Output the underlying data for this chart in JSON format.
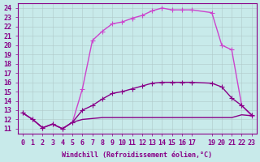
{
  "xlabel": "Windchill (Refroidissement éolien,°C)",
  "background_color": "#c8eaea",
  "grid_color": "#b0c8c8",
  "line_color1": "#880088",
  "line_color2": "#cc44cc",
  "xlim_min": -0.5,
  "xlim_max": 23.5,
  "ylim_min": 10.5,
  "ylim_max": 24.5,
  "yticks": [
    11,
    12,
    13,
    14,
    15,
    16,
    17,
    18,
    19,
    20,
    21,
    22,
    23,
    24
  ],
  "xticks": [
    0,
    1,
    2,
    3,
    4,
    5,
    6,
    7,
    8,
    9,
    10,
    11,
    12,
    13,
    14,
    15,
    16,
    17,
    19,
    20,
    21,
    22,
    23
  ],
  "curve_bright_x": [
    0,
    1,
    2,
    3,
    4,
    5,
    6,
    7,
    8,
    9,
    10,
    11,
    12,
    13,
    14,
    15,
    16,
    17,
    19,
    20,
    21,
    22,
    23
  ],
  "curve_bright_y": [
    12.7,
    12.0,
    11.1,
    11.5,
    11.0,
    11.7,
    15.3,
    20.5,
    21.5,
    22.3,
    22.5,
    22.9,
    23.2,
    23.7,
    24.0,
    23.8,
    23.8,
    23.8,
    23.5,
    20.0,
    19.5,
    13.5,
    12.4
  ],
  "curve_mid_x": [
    0,
    1,
    2,
    3,
    4,
    5,
    6,
    7,
    8,
    9,
    10,
    11,
    12,
    13,
    14,
    15,
    16,
    17,
    19,
    20,
    21,
    22,
    23
  ],
  "curve_mid_y": [
    12.7,
    12.0,
    11.1,
    11.5,
    11.0,
    11.7,
    13.0,
    13.5,
    14.2,
    14.8,
    15.0,
    15.3,
    15.6,
    15.9,
    16.0,
    16.0,
    16.0,
    16.0,
    15.9,
    15.5,
    14.3,
    13.5,
    12.5
  ],
  "curve_flat_x": [
    0,
    1,
    2,
    3,
    4,
    5,
    6,
    7,
    8,
    9,
    10,
    11,
    12,
    13,
    14,
    15,
    16,
    17,
    19,
    20,
    21,
    22,
    23
  ],
  "curve_flat_y": [
    12.7,
    12.0,
    11.1,
    11.5,
    11.0,
    11.7,
    12.0,
    12.1,
    12.2,
    12.2,
    12.2,
    12.2,
    12.2,
    12.2,
    12.2,
    12.2,
    12.2,
    12.2,
    12.2,
    12.2,
    12.2,
    12.5,
    12.4
  ],
  "font_size": 6.0,
  "linewidth": 1.0,
  "markersize": 4
}
